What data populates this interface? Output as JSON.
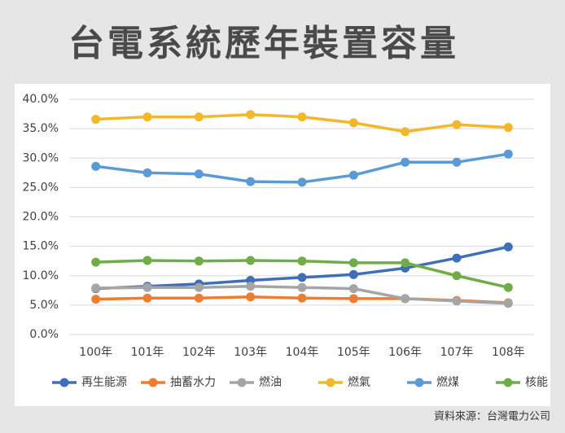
{
  "chart_data": {
    "type": "line",
    "title": "台電系統歷年裝置容量",
    "source": "資料來源：台灣電力公司",
    "categories": [
      "100年",
      "101年",
      "102年",
      "103年",
      "104年",
      "105年",
      "106年",
      "107年",
      "108年"
    ],
    "series": [
      {
        "name": "再生能源",
        "color": "#3f6fb7",
        "values": [
          7.8,
          8.2,
          8.6,
          9.2,
          9.7,
          10.2,
          11.3,
          13.0,
          14.9
        ]
      },
      {
        "name": "抽蓄水力",
        "color": "#ed7d31",
        "values": [
          6.0,
          6.2,
          6.2,
          6.4,
          6.2,
          6.1,
          6.1,
          5.8,
          5.4
        ]
      },
      {
        "name": "燃油",
        "color": "#a5a5a5",
        "values": [
          7.9,
          8.0,
          8.0,
          8.2,
          8.0,
          7.8,
          6.1,
          5.7,
          5.3
        ]
      },
      {
        "name": "燃氣",
        "color": "#f2b82c",
        "values": [
          36.6,
          37.0,
          37.0,
          37.4,
          37.0,
          36.0,
          34.5,
          35.7,
          35.2
        ]
      },
      {
        "name": "燃煤",
        "color": "#5b9bd5",
        "values": [
          28.6,
          27.5,
          27.3,
          26.0,
          25.9,
          27.1,
          29.3,
          29.3,
          30.7
        ]
      },
      {
        "name": "核能",
        "color": "#70ad47",
        "values": [
          12.3,
          12.6,
          12.5,
          12.6,
          12.5,
          12.2,
          12.2,
          10.0,
          8.0
        ]
      }
    ],
    "ylim": [
      0,
      40
    ],
    "yticks": [
      {
        "value": 0,
        "label": "0.0%"
      },
      {
        "value": 5,
        "label": "5.0%"
      },
      {
        "value": 10,
        "label": "10.0%"
      },
      {
        "value": 15,
        "label": "15.0%"
      },
      {
        "value": 20,
        "label": "20.0%"
      },
      {
        "value": 25,
        "label": "25.0%"
      },
      {
        "value": 30,
        "label": "30.0%"
      },
      {
        "value": 35,
        "label": "35.0%"
      },
      {
        "value": 40,
        "label": "40.0%"
      }
    ],
    "grid": true,
    "legend": "bottom"
  }
}
